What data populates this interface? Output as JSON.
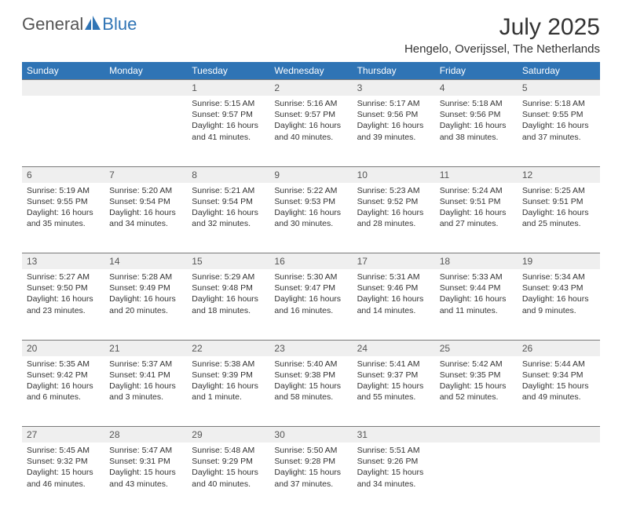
{
  "brand": {
    "part1": "General",
    "part2": "Blue"
  },
  "title": "July 2025",
  "subtitle": "Hengelo, Overijssel, The Netherlands",
  "colors": {
    "header_bg": "#2f74b5",
    "header_text": "#ffffff",
    "daynum_bg": "#efefef",
    "border": "#7a7a7a",
    "page_bg": "#ffffff",
    "text": "#333333"
  },
  "weekdays": [
    "Sunday",
    "Monday",
    "Tuesday",
    "Wednesday",
    "Thursday",
    "Friday",
    "Saturday"
  ],
  "weeks": [
    [
      null,
      null,
      {
        "n": "1",
        "sr": "5:15 AM",
        "ss": "9:57 PM",
        "dl": "16 hours and 41 minutes."
      },
      {
        "n": "2",
        "sr": "5:16 AM",
        "ss": "9:57 PM",
        "dl": "16 hours and 40 minutes."
      },
      {
        "n": "3",
        "sr": "5:17 AM",
        "ss": "9:56 PM",
        "dl": "16 hours and 39 minutes."
      },
      {
        "n": "4",
        "sr": "5:18 AM",
        "ss": "9:56 PM",
        "dl": "16 hours and 38 minutes."
      },
      {
        "n": "5",
        "sr": "5:18 AM",
        "ss": "9:55 PM",
        "dl": "16 hours and 37 minutes."
      }
    ],
    [
      {
        "n": "6",
        "sr": "5:19 AM",
        "ss": "9:55 PM",
        "dl": "16 hours and 35 minutes."
      },
      {
        "n": "7",
        "sr": "5:20 AM",
        "ss": "9:54 PM",
        "dl": "16 hours and 34 minutes."
      },
      {
        "n": "8",
        "sr": "5:21 AM",
        "ss": "9:54 PM",
        "dl": "16 hours and 32 minutes."
      },
      {
        "n": "9",
        "sr": "5:22 AM",
        "ss": "9:53 PM",
        "dl": "16 hours and 30 minutes."
      },
      {
        "n": "10",
        "sr": "5:23 AM",
        "ss": "9:52 PM",
        "dl": "16 hours and 28 minutes."
      },
      {
        "n": "11",
        "sr": "5:24 AM",
        "ss": "9:51 PM",
        "dl": "16 hours and 27 minutes."
      },
      {
        "n": "12",
        "sr": "5:25 AM",
        "ss": "9:51 PM",
        "dl": "16 hours and 25 minutes."
      }
    ],
    [
      {
        "n": "13",
        "sr": "5:27 AM",
        "ss": "9:50 PM",
        "dl": "16 hours and 23 minutes."
      },
      {
        "n": "14",
        "sr": "5:28 AM",
        "ss": "9:49 PM",
        "dl": "16 hours and 20 minutes."
      },
      {
        "n": "15",
        "sr": "5:29 AM",
        "ss": "9:48 PM",
        "dl": "16 hours and 18 minutes."
      },
      {
        "n": "16",
        "sr": "5:30 AM",
        "ss": "9:47 PM",
        "dl": "16 hours and 16 minutes."
      },
      {
        "n": "17",
        "sr": "5:31 AM",
        "ss": "9:46 PM",
        "dl": "16 hours and 14 minutes."
      },
      {
        "n": "18",
        "sr": "5:33 AM",
        "ss": "9:44 PM",
        "dl": "16 hours and 11 minutes."
      },
      {
        "n": "19",
        "sr": "5:34 AM",
        "ss": "9:43 PM",
        "dl": "16 hours and 9 minutes."
      }
    ],
    [
      {
        "n": "20",
        "sr": "5:35 AM",
        "ss": "9:42 PM",
        "dl": "16 hours and 6 minutes."
      },
      {
        "n": "21",
        "sr": "5:37 AM",
        "ss": "9:41 PM",
        "dl": "16 hours and 3 minutes."
      },
      {
        "n": "22",
        "sr": "5:38 AM",
        "ss": "9:39 PM",
        "dl": "16 hours and 1 minute."
      },
      {
        "n": "23",
        "sr": "5:40 AM",
        "ss": "9:38 PM",
        "dl": "15 hours and 58 minutes."
      },
      {
        "n": "24",
        "sr": "5:41 AM",
        "ss": "9:37 PM",
        "dl": "15 hours and 55 minutes."
      },
      {
        "n": "25",
        "sr": "5:42 AM",
        "ss": "9:35 PM",
        "dl": "15 hours and 52 minutes."
      },
      {
        "n": "26",
        "sr": "5:44 AM",
        "ss": "9:34 PM",
        "dl": "15 hours and 49 minutes."
      }
    ],
    [
      {
        "n": "27",
        "sr": "5:45 AM",
        "ss": "9:32 PM",
        "dl": "15 hours and 46 minutes."
      },
      {
        "n": "28",
        "sr": "5:47 AM",
        "ss": "9:31 PM",
        "dl": "15 hours and 43 minutes."
      },
      {
        "n": "29",
        "sr": "5:48 AM",
        "ss": "9:29 PM",
        "dl": "15 hours and 40 minutes."
      },
      {
        "n": "30",
        "sr": "5:50 AM",
        "ss": "9:28 PM",
        "dl": "15 hours and 37 minutes."
      },
      {
        "n": "31",
        "sr": "5:51 AM",
        "ss": "9:26 PM",
        "dl": "15 hours and 34 minutes."
      },
      null,
      null
    ]
  ],
  "labels": {
    "sunrise": "Sunrise:",
    "sunset": "Sunset:",
    "daylight": "Daylight:"
  }
}
